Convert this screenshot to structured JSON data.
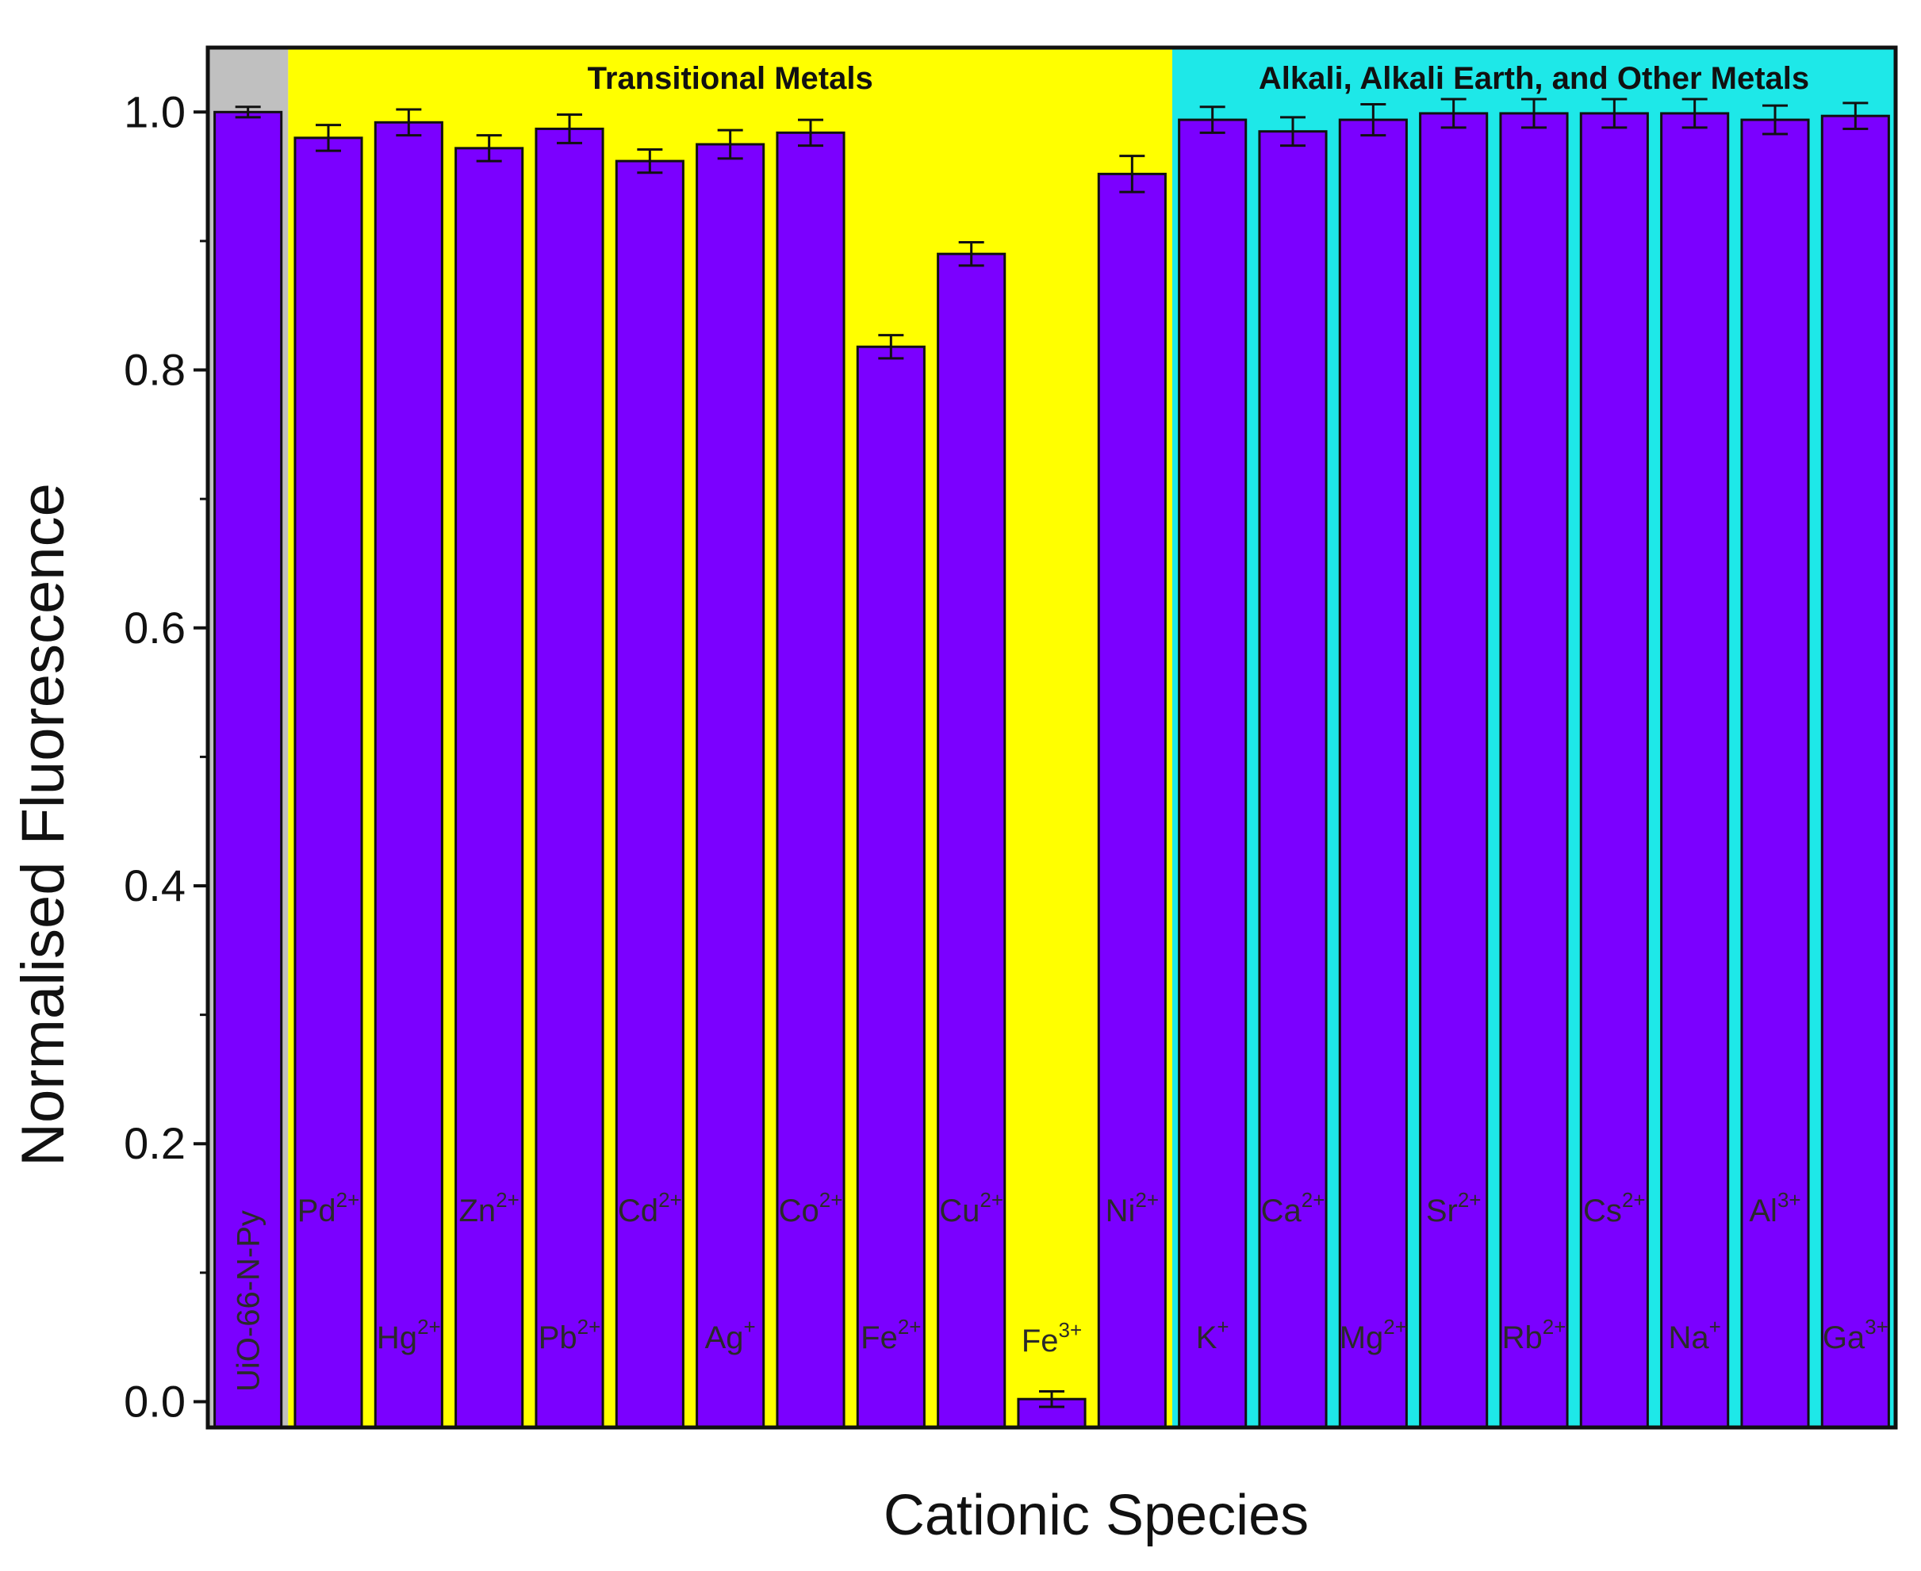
{
  "chart_data": {
    "type": "bar",
    "title": "",
    "xlabel": "Cationic Species",
    "ylabel": "Normalised Fluorescence",
    "ylim": [
      -0.02,
      1.05
    ],
    "yticks": [
      0.0,
      0.2,
      0.4,
      0.6,
      0.8,
      1.0
    ],
    "ytick_labels": [
      "0.0",
      "0.2",
      "0.4",
      "0.6",
      "0.8",
      "1.0"
    ],
    "grid": false,
    "colors": {
      "bar": "#7B00FF",
      "control_region": "#C0C0C0",
      "transition_region": "#FFFF00",
      "other_region": "#1EE8E8",
      "axis": "#111111"
    },
    "regions": [
      {
        "name": "control",
        "label": "",
        "start": 0,
        "end": 0,
        "color": "#C0C0C0"
      },
      {
        "name": "transition",
        "label": "Transitional Metals",
        "start": 1,
        "end": 11,
        "color": "#FFFF00"
      },
      {
        "name": "other",
        "label": "Alkali, Alkali Earth, and Other Metals",
        "start": 12,
        "end": 20,
        "color": "#1EE8E8"
      }
    ],
    "bars": [
      {
        "base": "UiO-66-N-Py",
        "sup": "",
        "value": 1.0,
        "error": 0.004,
        "label_pos": "rotated"
      },
      {
        "base": "Pd",
        "sup": "2+",
        "value": 0.98,
        "error": 0.01,
        "label_pos": "high"
      },
      {
        "base": "Hg",
        "sup": "2+",
        "value": 0.992,
        "error": 0.01,
        "label_pos": "low"
      },
      {
        "base": "Zn",
        "sup": "2+",
        "value": 0.972,
        "error": 0.01,
        "label_pos": "high"
      },
      {
        "base": "Pb",
        "sup": "2+",
        "value": 0.987,
        "error": 0.011,
        "label_pos": "low"
      },
      {
        "base": "Cd",
        "sup": "2+",
        "value": 0.962,
        "error": 0.009,
        "label_pos": "high"
      },
      {
        "base": "Ag",
        "sup": "+",
        "value": 0.975,
        "error": 0.011,
        "label_pos": "low"
      },
      {
        "base": "Co",
        "sup": "2+",
        "value": 0.984,
        "error": 0.01,
        "label_pos": "high"
      },
      {
        "base": "Fe",
        "sup": "2+",
        "value": 0.818,
        "error": 0.009,
        "label_pos": "low"
      },
      {
        "base": "Cu",
        "sup": "2+",
        "value": 0.89,
        "error": 0.009,
        "label_pos": "high"
      },
      {
        "base": "Fe",
        "sup": "3+",
        "value": 0.002,
        "error": 0.006,
        "label_pos": "above"
      },
      {
        "base": "Ni",
        "sup": "2+",
        "value": 0.952,
        "error": 0.014,
        "label_pos": "high"
      },
      {
        "base": "K",
        "sup": "+",
        "value": 0.994,
        "error": 0.01,
        "label_pos": "low"
      },
      {
        "base": "Ca",
        "sup": "2+",
        "value": 0.985,
        "error": 0.011,
        "label_pos": "high"
      },
      {
        "base": "Mg",
        "sup": "2+",
        "value": 0.994,
        "error": 0.012,
        "label_pos": "low"
      },
      {
        "base": "Sr",
        "sup": "2+",
        "value": 0.999,
        "error": 0.011,
        "label_pos": "high"
      },
      {
        "base": "Rb",
        "sup": "2+",
        "value": 0.999,
        "error": 0.011,
        "label_pos": "low"
      },
      {
        "base": "Cs",
        "sup": "2+",
        "value": 0.999,
        "error": 0.011,
        "label_pos": "high"
      },
      {
        "base": "Na",
        "sup": "+",
        "value": 0.999,
        "error": 0.011,
        "label_pos": "low"
      },
      {
        "base": "Al",
        "sup": "3+",
        "value": 0.994,
        "error": 0.011,
        "label_pos": "high"
      },
      {
        "base": "Ga",
        "sup": "3+",
        "value": 0.997,
        "error": 0.01,
        "label_pos": "low"
      }
    ]
  }
}
